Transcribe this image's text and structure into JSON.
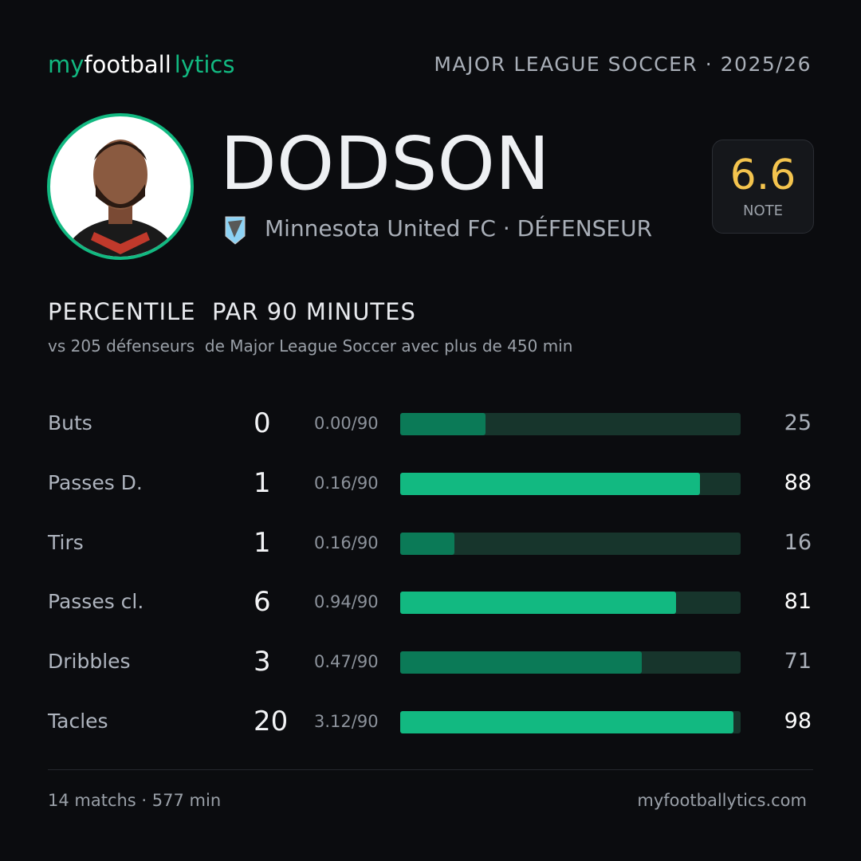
{
  "header": {
    "brand": [
      "my",
      "football",
      "lytics"
    ],
    "league": "MAJOR LEAGUE SOCCER · 2025/26"
  },
  "player": {
    "name": "DODSON",
    "club": "Minnesota United FC · DÉFENSEUR"
  },
  "rating": {
    "value": 6.6,
    "label": "NOTE"
  },
  "section": {
    "title": "PERCENTILE  PAR 90 MINUTES",
    "subtitle": "vs 205 défenseurs  de Major League Soccer avec plus de 450 min"
  },
  "stats": {
    "rows": [
      {
        "label": "Buts",
        "count": 0,
        "per90": "0.00/90",
        "percentile": 25,
        "color": "#0b7a57"
      },
      {
        "label": "Passes D.",
        "count": 1,
        "per90": "0.16/90",
        "percentile": 88,
        "color": "#12b981"
      },
      {
        "label": "Tirs",
        "count": 1,
        "per90": "0.16/90",
        "percentile": 16,
        "color": "#0b7a57"
      },
      {
        "label": "Passes cl.",
        "count": 6,
        "per90": "0.94/90",
        "percentile": 81,
        "color": "#12b981"
      },
      {
        "label": "Dribbles",
        "count": 3,
        "per90": "0.47/90",
        "percentile": 71,
        "color": "#0b7a57"
      },
      {
        "label": "Tacles",
        "count": 20,
        "per90": "3.12/90",
        "percentile": 98,
        "color": "#12b981"
      }
    ]
  },
  "footer": {
    "left": "14 matchs · 577 min",
    "right": "myfootballytics.com"
  }
}
